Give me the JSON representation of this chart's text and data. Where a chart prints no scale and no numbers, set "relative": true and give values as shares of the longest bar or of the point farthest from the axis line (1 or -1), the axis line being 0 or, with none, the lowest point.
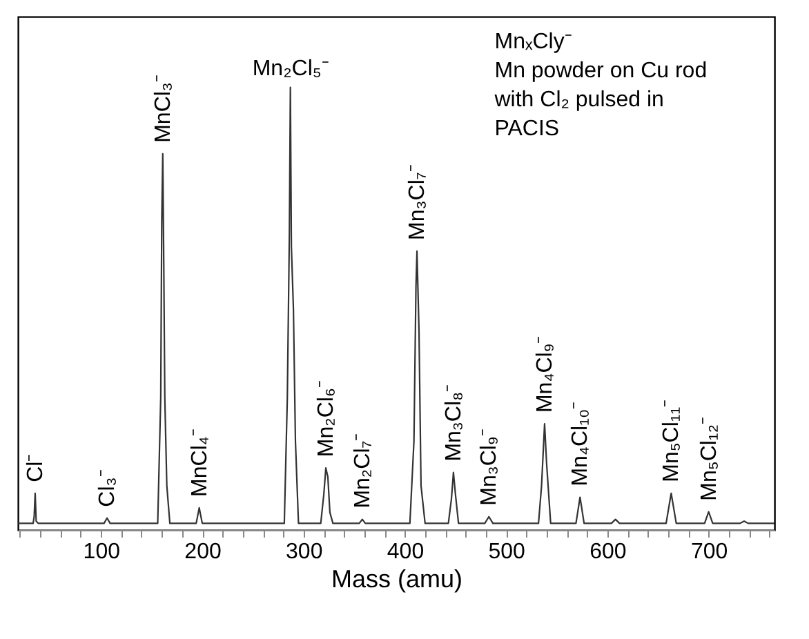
{
  "chart_data": {
    "type": "line",
    "relative": true,
    "xlabel": "Mass (amu)",
    "xlim": [
      18,
      765
    ],
    "xticks": [
      {
        "value": 20,
        "label": null
      },
      {
        "value": 40,
        "label": null
      },
      {
        "value": 60,
        "label": null
      },
      {
        "value": 80,
        "label": null
      },
      100,
      {
        "value": 120,
        "label": null
      },
      {
        "value": 140,
        "label": null
      },
      {
        "value": 160,
        "label": null
      },
      {
        "value": 180,
        "label": null
      },
      200,
      {
        "value": 220,
        "label": null
      },
      {
        "value": 240,
        "label": null
      },
      {
        "value": 260,
        "label": null
      },
      {
        "value": 280,
        "label": null
      },
      300,
      {
        "value": 320,
        "label": null
      },
      {
        "value": 340,
        "label": null
      },
      {
        "value": 360,
        "label": null
      },
      {
        "value": 380,
        "label": null
      },
      400,
      {
        "value": 420,
        "label": null
      },
      {
        "value": 440,
        "label": null
      },
      {
        "value": 460,
        "label": null
      },
      {
        "value": 480,
        "label": null
      },
      500,
      {
        "value": 520,
        "label": null
      },
      {
        "value": 540,
        "label": null
      },
      {
        "value": 560,
        "label": null
      },
      {
        "value": 580,
        "label": null
      },
      600,
      {
        "value": 620,
        "label": null
      },
      {
        "value": 640,
        "label": null
      },
      {
        "value": 660,
        "label": null
      },
      {
        "value": 680,
        "label": null
      },
      700,
      {
        "value": 720,
        "label": null
      },
      {
        "value": 740,
        "label": null
      },
      {
        "value": 760,
        "label": null
      }
    ],
    "tick_labels": "x",
    "grid": false,
    "marker": "none",
    "line_style": "solid",
    "series": [
      {
        "color": "#333333",
        "x": [
          18,
          33,
          34,
          35,
          36,
          38,
          103,
          106,
          109,
          156,
          159,
          160,
          161,
          162,
          163,
          165,
          168,
          194,
          197,
          200,
          281,
          284,
          286,
          287,
          288,
          290,
          292,
          295,
          317,
          320,
          322,
          324,
          326,
          329,
          355,
          358,
          361,
          405,
          409,
          411,
          412,
          414,
          416,
          420,
          443,
          446,
          448,
          450,
          453,
          479,
          483,
          487,
          532,
          535,
          538,
          540,
          544,
          569,
          573,
          577,
          604,
          608,
          612,
          658,
          663,
          668,
          696,
          700,
          704,
          731,
          735,
          739,
          765
        ],
        "values": [
          0.015,
          0.015,
          0.03,
          0.083,
          0.02,
          0.015,
          0.015,
          0.027,
          0.015,
          0.015,
          0.3,
          0.7,
          0.85,
          0.6,
          0.3,
          0.1,
          0.015,
          0.015,
          0.05,
          0.015,
          0.015,
          0.3,
          0.67,
          1.0,
          0.64,
          0.5,
          0.2,
          0.015,
          0.015,
          0.08,
          0.14,
          0.12,
          0.04,
          0.015,
          0.015,
          0.024,
          0.015,
          0.015,
          0.2,
          0.55,
          0.63,
          0.45,
          0.1,
          0.015,
          0.015,
          0.07,
          0.13,
          0.08,
          0.015,
          0.015,
          0.03,
          0.015,
          0.015,
          0.1,
          0.24,
          0.15,
          0.015,
          0.015,
          0.074,
          0.015,
          0.015,
          0.024,
          0.015,
          0.015,
          0.083,
          0.015,
          0.015,
          0.041,
          0.015,
          0.015,
          0.02,
          0.015,
          0.015
        ]
      }
    ],
    "annotations": [
      {
        "text": "Cl⁻",
        "x": 35,
        "y": 0.083
      },
      {
        "text": "Cl₃⁻",
        "x": 106,
        "y": 0.027
      },
      {
        "text": "MnCl₃⁻",
        "x": 161,
        "y": 0.85
      },
      {
        "text": "MnCl₄⁻",
        "x": 197,
        "y": 0.05
      },
      {
        "text": "Mn₂Cl₅⁻",
        "x": 287,
        "y": 1.0
      },
      {
        "text": "Mn₂Cl₆⁻",
        "x": 322,
        "y": 0.14
      },
      {
        "text": "Mn₂Cl₇⁻",
        "x": 358,
        "y": 0.024
      },
      {
        "text": "Mn₃Cl₇⁻",
        "x": 412,
        "y": 0.63
      },
      {
        "text": "Mn₃Cl₈⁻",
        "x": 448,
        "y": 0.13
      },
      {
        "text": "Mn₃Cl₉⁻",
        "x": 483,
        "y": 0.03
      },
      {
        "text": "Mn₄Cl₉⁻",
        "x": 538,
        "y": 0.24
      },
      {
        "text": "Mn₄Cl₁₀⁻",
        "x": 573,
        "y": 0.074
      },
      {
        "text": "Mn₅Cl₁₁⁻",
        "x": 663,
        "y": 0.083
      },
      {
        "text": "Mn₅Cl₁₂⁻",
        "x": 700,
        "y": 0.041
      },
      "MnₓCly⁻",
      "Mn powder on Cu rod",
      "with Cl₂ pulsed in",
      "PACIS"
    ]
  }
}
